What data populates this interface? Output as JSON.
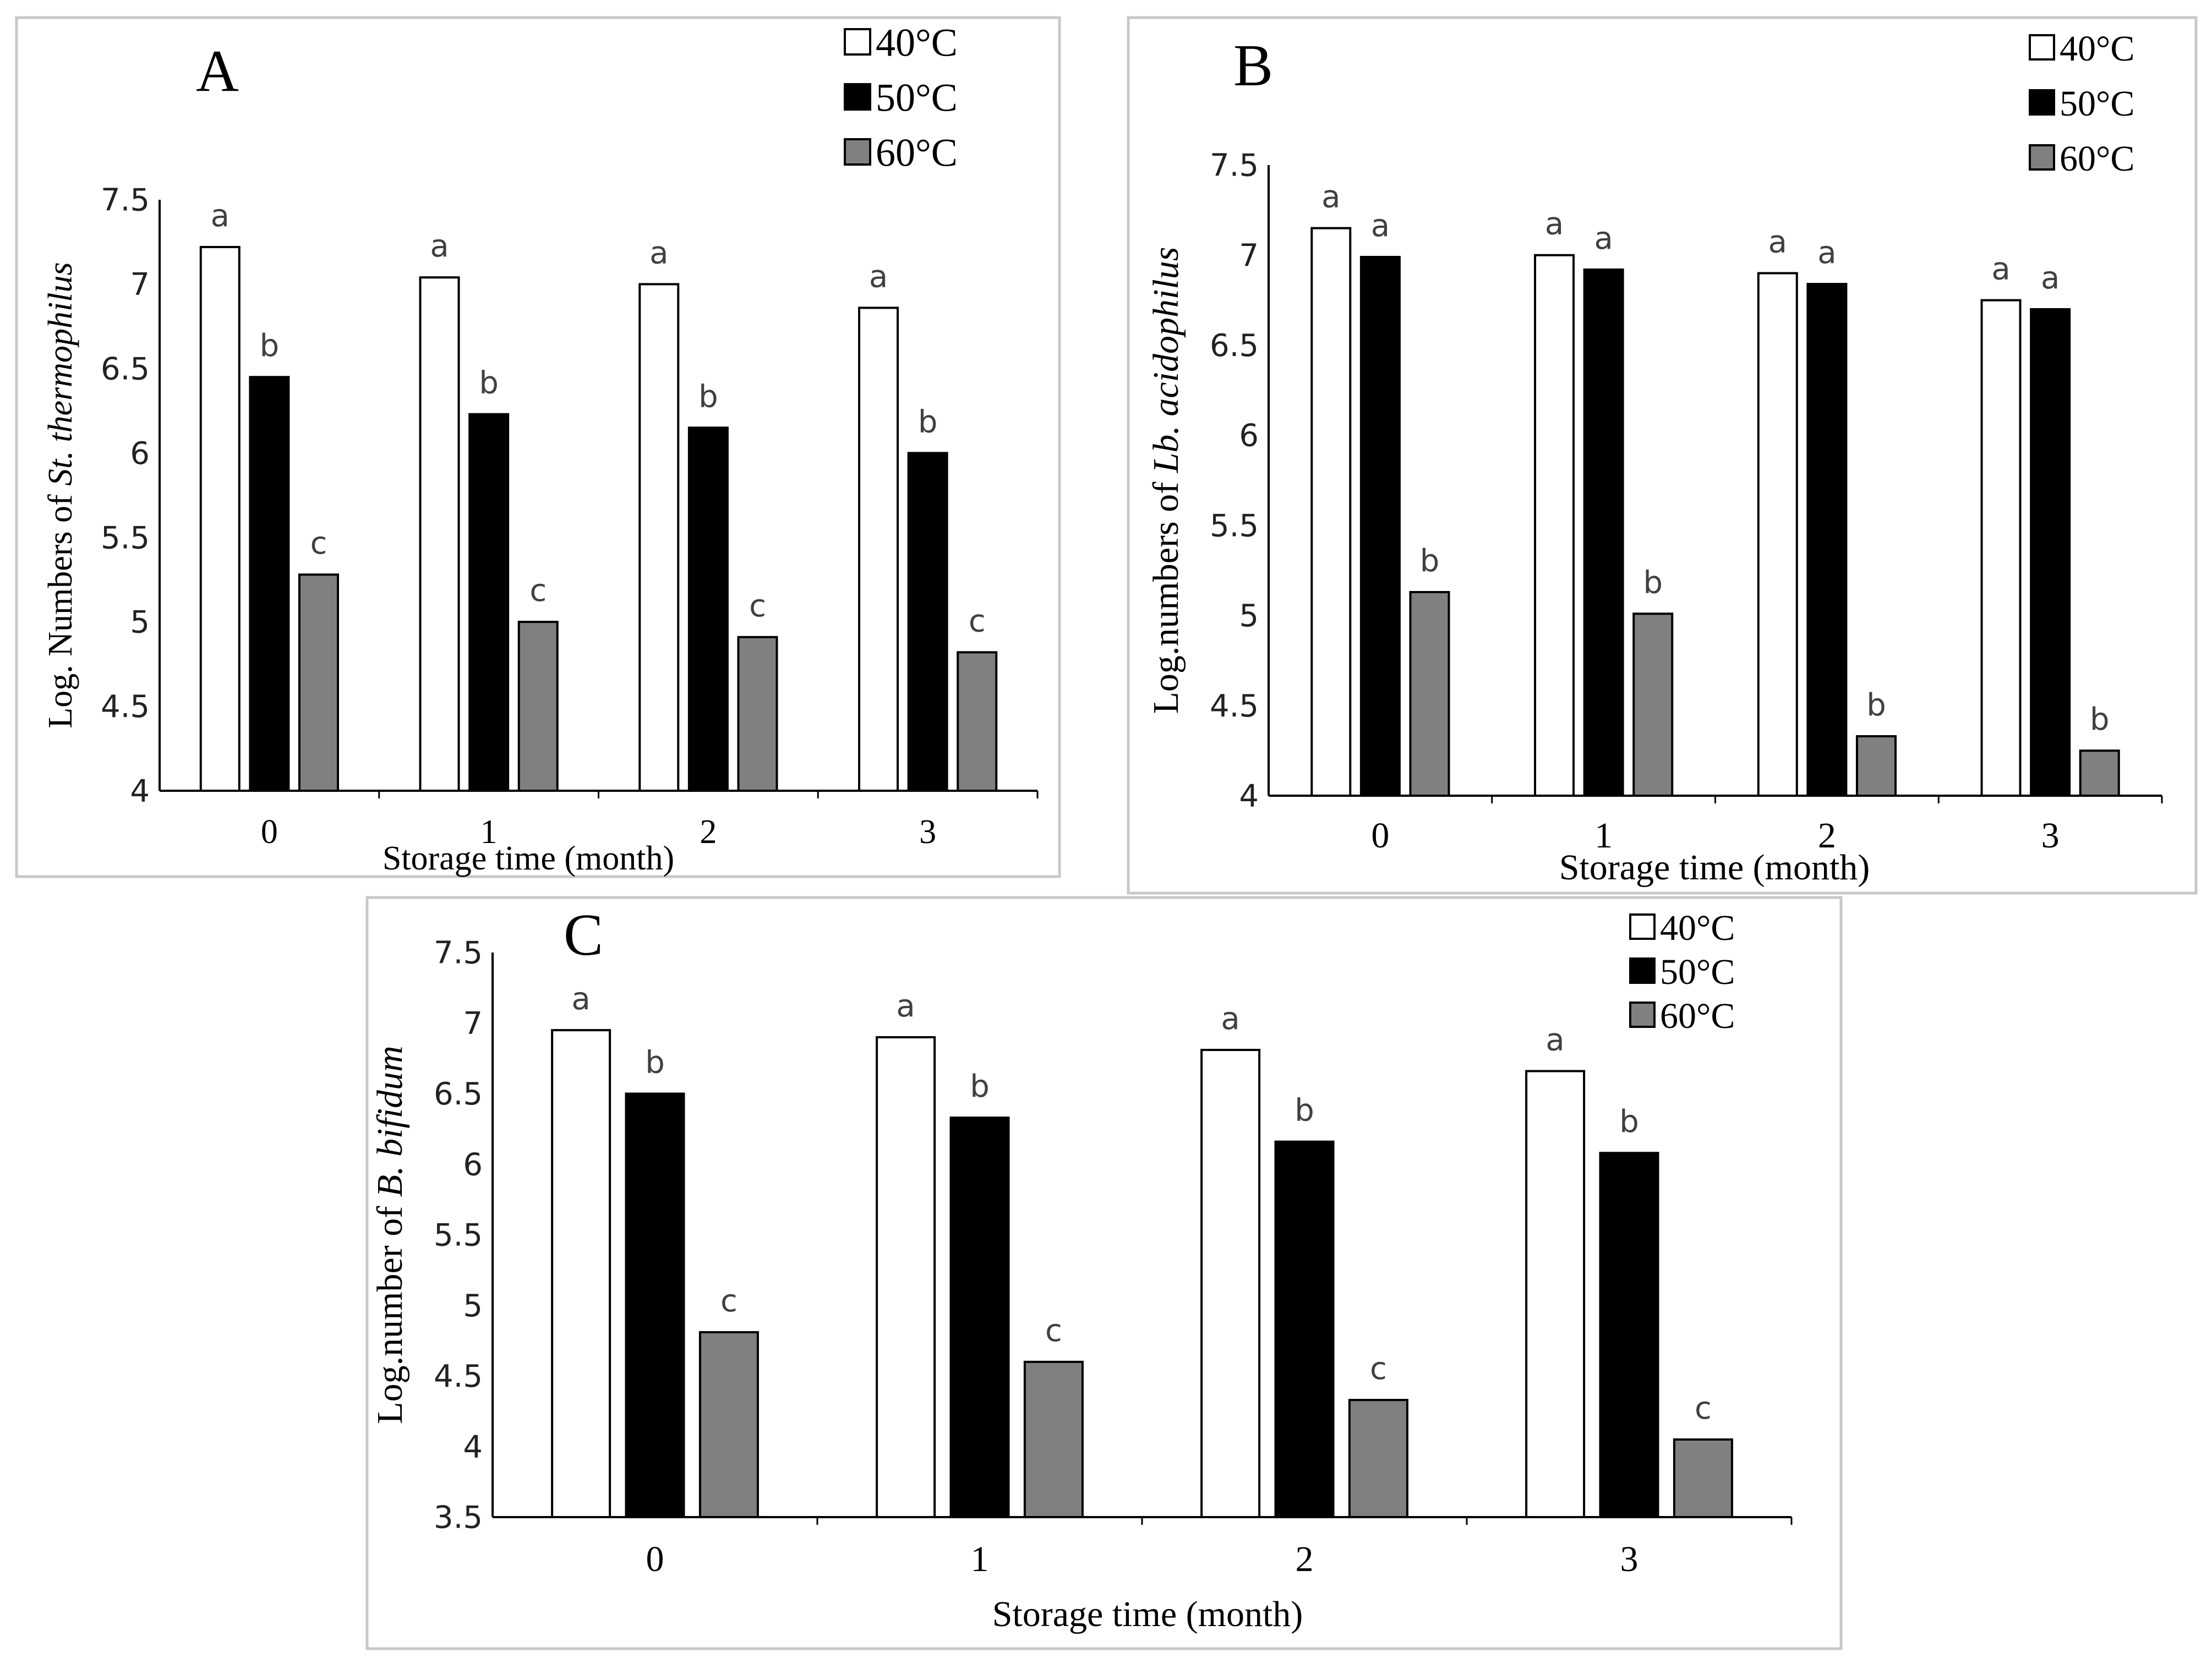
{
  "colors": {
    "40°C": "#ffffff",
    "50°C": "#000000",
    "60°C": "#808080",
    "frame": "#c8c8c8",
    "axis": "#000000",
    "sig_label": "#404040"
  },
  "chart_data": [
    {
      "panel": "A",
      "type": "bar",
      "title": "",
      "xlabel": "Storage time (month)",
      "ylabel": "Log. Numbers of St. thermophilus",
      "ylabel_parts": [
        "Log. Numbers of ",
        "St. thermophilus"
      ],
      "ylim": [
        4,
        7.5
      ],
      "yticks": [
        "4",
        "4.5",
        "5",
        "5.5",
        "6",
        "6.5",
        "7",
        "7.5"
      ],
      "categories": [
        "0",
        "1",
        "2",
        "3"
      ],
      "series": [
        {
          "name": "40°C",
          "values": [
            7.22,
            7.04,
            7.0,
            6.86
          ],
          "labels": [
            "a",
            "a",
            "a",
            "a"
          ]
        },
        {
          "name": "50°C",
          "values": [
            6.45,
            6.23,
            6.15,
            6.0
          ],
          "labels": [
            "b",
            "b",
            "b",
            "b"
          ]
        },
        {
          "name": "60°C",
          "values": [
            5.28,
            5.0,
            4.91,
            4.82
          ],
          "labels": [
            "c",
            "c",
            "c",
            "c"
          ]
        }
      ],
      "legend": "top-right"
    },
    {
      "panel": "B",
      "type": "bar",
      "title": "",
      "xlabel": "Storage time (month)",
      "ylabel": "Log.numbers of Lb. acidophilus",
      "ylabel_parts": [
        "Log.numbers of ",
        "Lb. acidophilus"
      ],
      "ylim": [
        4,
        7.5
      ],
      "yticks": [
        "4",
        "4.5",
        "5",
        "5.5",
        "6",
        "6.5",
        "7",
        "7.5"
      ],
      "categories": [
        "0",
        "1",
        "2",
        "3"
      ],
      "series": [
        {
          "name": "40°C",
          "values": [
            7.15,
            7.0,
            6.9,
            6.75
          ],
          "labels": [
            "a",
            "a",
            "a",
            "a"
          ]
        },
        {
          "name": "50°C",
          "values": [
            6.99,
            6.92,
            6.84,
            6.7
          ],
          "labels": [
            "a",
            "a",
            "a",
            "a"
          ]
        },
        {
          "name": "60°C",
          "values": [
            5.13,
            5.01,
            4.33,
            4.25
          ],
          "labels": [
            "b",
            "b",
            "b",
            "b"
          ]
        }
      ],
      "legend": "top-right"
    },
    {
      "panel": "C",
      "type": "bar",
      "title": "",
      "xlabel": "Storage time (month)",
      "ylabel": "Log.number of B. bifidum",
      "ylabel_parts": [
        "Log.number of ",
        "B. bifidum"
      ],
      "ylim": [
        3.5,
        7.5
      ],
      "yticks": [
        "3.5",
        "4",
        "4.5",
        "5",
        "5.5",
        "6",
        "6.5",
        "7",
        "7.5"
      ],
      "categories": [
        "0",
        "1",
        "2",
        "3"
      ],
      "series": [
        {
          "name": "40°C",
          "values": [
            6.95,
            6.9,
            6.81,
            6.66
          ],
          "labels": [
            "a",
            "a",
            "a",
            "a"
          ]
        },
        {
          "name": "50°C",
          "values": [
            6.5,
            6.33,
            6.16,
            6.08
          ],
          "labels": [
            "b",
            "b",
            "b",
            "b"
          ]
        },
        {
          "name": "60°C",
          "values": [
            4.81,
            4.6,
            4.33,
            4.05
          ],
          "labels": [
            "c",
            "c",
            "c",
            "c"
          ]
        }
      ],
      "legend": "top-right"
    }
  ]
}
